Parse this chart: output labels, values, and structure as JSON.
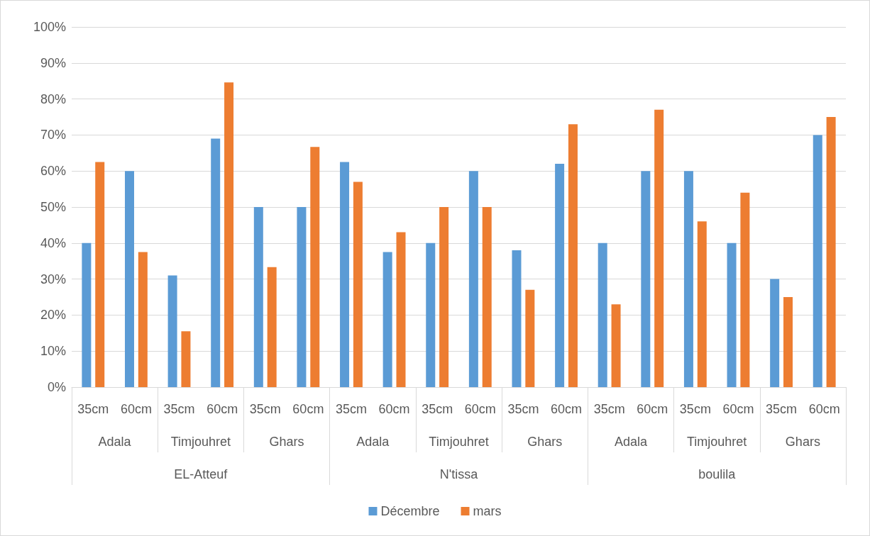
{
  "chart_data": {
    "type": "bar",
    "categories": [
      "35cm",
      "60cm",
      "35cm",
      "60cm",
      "35cm",
      "60cm",
      "35cm",
      "60cm",
      "35cm",
      "60cm",
      "35cm",
      "60cm",
      "35cm",
      "60cm",
      "35cm",
      "60cm",
      "35cm",
      "60cm"
    ],
    "series": [
      {
        "name": "Décembre",
        "color": "#5b9bd5",
        "values": [
          40,
          60,
          31,
          69,
          50,
          50,
          62.5,
          37.5,
          40,
          60,
          38,
          62,
          40,
          60,
          60,
          40,
          30,
          70
        ]
      },
      {
        "name": "mars",
        "color": "#ed7d31",
        "values": [
          62.5,
          37.5,
          15.5,
          84.6,
          33.3,
          66.7,
          57,
          43,
          50,
          50,
          27,
          73,
          23,
          77,
          46,
          54,
          25,
          75
        ]
      }
    ],
    "annotations": [
      "Adala",
      "Timjouhret",
      "Ghars",
      "Adala",
      "Timjouhret",
      "Ghars",
      "Adala",
      "Timjouhret",
      "Ghars",
      "EL-Atteuf",
      "N'tissa",
      "boulila"
    ],
    "ylim": [
      0,
      100
    ],
    "yticks": [
      {
        "value": 0,
        "label": "0%"
      },
      {
        "value": 10,
        "label": "10%"
      },
      {
        "value": 20,
        "label": "20%"
      },
      {
        "value": 30,
        "label": "30%"
      },
      {
        "value": 40,
        "label": "40%"
      },
      {
        "value": 50,
        "label": "50%"
      },
      {
        "value": 60,
        "label": "60%"
      },
      {
        "value": 70,
        "label": "70%"
      },
      {
        "value": 80,
        "label": "80%"
      },
      {
        "value": 90,
        "label": "90%"
      },
      {
        "value": 100,
        "label": "100%"
      }
    ],
    "grid": "y",
    "legend": "bottom"
  }
}
